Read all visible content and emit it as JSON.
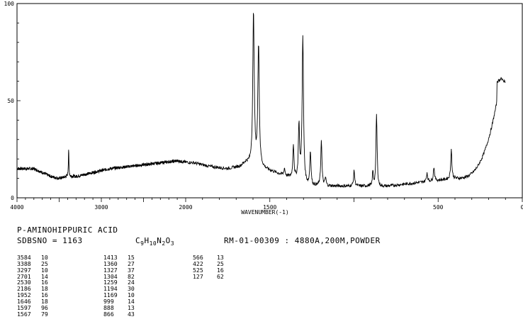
{
  "chart_data": {
    "type": "line",
    "title": "",
    "xlabel": "WAVENUMBER(-1)",
    "ylabel": "",
    "x_ticks": [
      "4000",
      "3000",
      "2000",
      "1500",
      "500",
      "0"
    ],
    "y_ticks": [
      "0",
      "50",
      "100"
    ],
    "xlim": [
      4000,
      0
    ],
    "ylim": [
      0,
      100
    ],
    "grid": false,
    "baseline": [
      [
        3800,
        15
      ],
      [
        3700,
        13
      ],
      [
        3600,
        11
      ],
      [
        3500,
        10
      ],
      [
        3400,
        11
      ],
      [
        3300,
        11
      ],
      [
        3100,
        13
      ],
      [
        2900,
        15
      ],
      [
        2700,
        16
      ],
      [
        2500,
        17
      ],
      [
        2300,
        18
      ],
      [
        2100,
        19
      ],
      [
        1950,
        18
      ],
      [
        1850,
        16
      ],
      [
        1750,
        15
      ],
      [
        1680,
        16
      ],
      [
        1640,
        18
      ]
    ],
    "series": [
      {
        "peaks_wavenumber": [
          3584,
          3388,
          3297,
          2701,
          2530,
          2186,
          1952,
          1646,
          1597,
          1567,
          1413,
          1360,
          1327,
          1304,
          1259,
          1194,
          1169,
          999,
          888,
          866,
          566,
          422,
          525,
          127
        ],
        "peaks_intensity": [
          10,
          25,
          10,
          14,
          16,
          18,
          16,
          18,
          96,
          79,
          15,
          27,
          37,
          82,
          24,
          30,
          10,
          14,
          13,
          43,
          13,
          25,
          16,
          62
        ]
      }
    ]
  },
  "compound": {
    "name": "P-AMINOHIPPURIC ACID",
    "sdbs_no": "SDBSNO = 1163",
    "formula": {
      "c": "C",
      "c_n": "9",
      "h": "H",
      "h_n": "10",
      "n": "N",
      "n_n": "2",
      "o": "O",
      "o_n": "3"
    },
    "measurement": "RM-01-00309 : 4880A,200M,POWDER"
  },
  "peak_table": {
    "columns": [
      [
        [
          "3584",
          "10"
        ],
        [
          "3388",
          "25"
        ],
        [
          "3297",
          "10"
        ],
        [
          "2701",
          "14"
        ],
        [
          "2530",
          "16"
        ],
        [
          "2186",
          "18"
        ],
        [
          "1952",
          "16"
        ],
        [
          "1646",
          "18"
        ],
        [
          "1597",
          "96"
        ],
        [
          "1567",
          "79"
        ]
      ],
      [
        [
          "1413",
          "15"
        ],
        [
          "1360",
          "27"
        ],
        [
          "1327",
          "37"
        ],
        [
          "1304",
          "82"
        ],
        [
          "1259",
          "24"
        ],
        [
          "1194",
          "30"
        ],
        [
          "1169",
          "10"
        ],
        [
          "999",
          "14"
        ],
        [
          "888",
          "13"
        ],
        [
          "866",
          "43"
        ]
      ],
      [
        [
          "566",
          "13"
        ],
        [
          "422",
          "25"
        ],
        [
          "525",
          "16"
        ],
        [
          "127",
          "62"
        ]
      ]
    ]
  }
}
